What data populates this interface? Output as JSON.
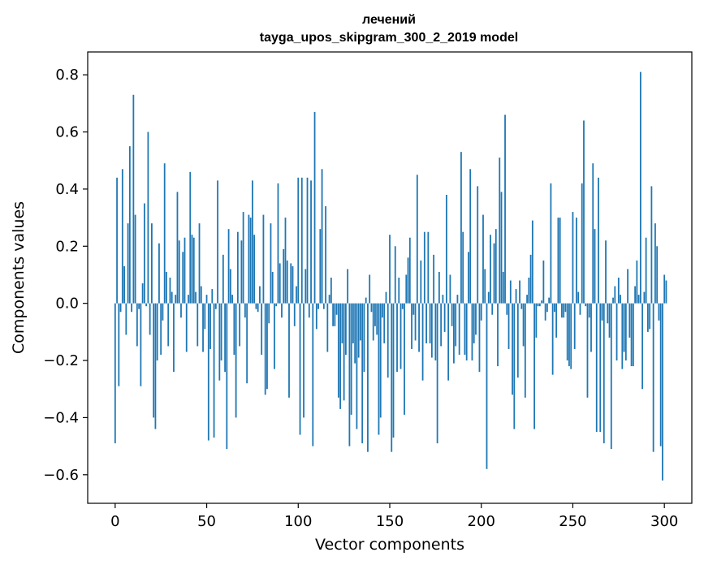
{
  "chart_data": {
    "type": "bar",
    "title": "лечений",
    "subtitle": "tayga_upos_skipgram_300_2_2019 model",
    "xlabel": "Vector components",
    "ylabel": "Components values",
    "xlim": [
      -15,
      315
    ],
    "ylim": [
      -0.7,
      0.88
    ],
    "xticks": [
      0,
      50,
      100,
      150,
      200,
      250,
      300
    ],
    "yticks": [
      -0.6,
      -0.4,
      -0.2,
      0.0,
      0.2,
      0.4,
      0.6,
      0.8
    ],
    "ytick_labels": [
      "−0.6",
      "−0.4",
      "−0.2",
      "0.0",
      "0.2",
      "0.4",
      "0.6",
      "0.8"
    ],
    "bar_color": "#1f77b4",
    "grid": false,
    "values": [
      -0.49,
      0.44,
      -0.29,
      -0.03,
      0.47,
      0.13,
      -0.11,
      0.28,
      0.55,
      -0.03,
      0.73,
      0.31,
      -0.15,
      -0.02,
      -0.29,
      0.07,
      0.35,
      -0.01,
      0.6,
      -0.11,
      0.28,
      -0.4,
      -0.44,
      -0.2,
      0.21,
      -0.18,
      -0.06,
      0.49,
      0.11,
      -0.15,
      0.09,
      0.04,
      -0.24,
      0.03,
      0.39,
      0.22,
      -0.05,
      0.18,
      0.23,
      -0.17,
      0.03,
      0.46,
      0.24,
      0.23,
      0.04,
      -0.15,
      0.28,
      0.06,
      -0.17,
      -0.09,
      0.03,
      -0.48,
      -0.16,
      0.05,
      -0.47,
      -0.02,
      0.43,
      -0.27,
      -0.2,
      0.17,
      -0.24,
      -0.51,
      0.26,
      0.12,
      0.03,
      -0.18,
      -0.4,
      0.25,
      -0.15,
      0.22,
      0.32,
      -0.05,
      -0.28,
      0.31,
      0.3,
      0.43,
      0.24,
      -0.02,
      -0.03,
      0.06,
      -0.18,
      0.31,
      -0.32,
      -0.3,
      -0.07,
      0.28,
      0.11,
      -0.23,
      -0.01,
      0.42,
      0.14,
      -0.05,
      0.19,
      0.3,
      0.15,
      -0.33,
      0.14,
      0.13,
      -0.08,
      0.06,
      0.44,
      -0.46,
      0.44,
      -0.4,
      0.12,
      0.44,
      -0.05,
      0.43,
      -0.5,
      0.67,
      -0.09,
      -0.02,
      0.26,
      0.47,
      -0.02,
      0.34,
      -0.17,
      0.03,
      0.09,
      -0.08,
      -0.08,
      -0.04,
      -0.33,
      -0.37,
      -0.14,
      -0.34,
      -0.18,
      0.12,
      -0.5,
      -0.39,
      -0.14,
      -0.21,
      -0.44,
      -0.19,
      -0.13,
      -0.49,
      -0.24,
      0.02,
      -0.52,
      0.1,
      -0.03,
      -0.13,
      -0.08,
      -0.11,
      -0.46,
      -0.4,
      -0.05,
      -0.14,
      0.04,
      -0.26,
      0.24,
      -0.52,
      -0.47,
      0.2,
      -0.24,
      0.09,
      -0.23,
      -0.02,
      -0.39,
      0.1,
      0.16,
      0.23,
      -0.16,
      -0.04,
      -0.13,
      0.45,
      -0.17,
      0.15,
      -0.27,
      0.25,
      -0.14,
      0.25,
      -0.14,
      -0.19,
      0.17,
      -0.2,
      -0.49,
      0.11,
      -0.15,
      0.03,
      -0.1,
      0.38,
      -0.27,
      0.1,
      -0.08,
      -0.21,
      -0.15,
      0.03,
      -0.18,
      0.53,
      0.25,
      -0.18,
      -0.2,
      0.18,
      0.47,
      -0.2,
      -0.14,
      -0.11,
      0.41,
      -0.24,
      -0.06,
      0.31,
      0.12,
      -0.58,
      0.04,
      0.24,
      -0.04,
      0.21,
      0.26,
      -0.22,
      0.51,
      0.39,
      0.11,
      0.66,
      -0.04,
      -0.16,
      0.08,
      -0.32,
      -0.44,
      0.05,
      -0.26,
      0.08,
      -0.02,
      -0.15,
      -0.33,
      0.03,
      0.09,
      0.17,
      0.29,
      -0.44,
      -0.12,
      -0.01,
      -0.01,
      0.01,
      0.15,
      -0.06,
      -0.03,
      0.02,
      0.42,
      -0.25,
      -0.03,
      -0.12,
      0.3,
      0.3,
      -0.05,
      -0.05,
      -0.03,
      -0.2,
      -0.22,
      -0.23,
      0.32,
      -0.16,
      0.3,
      0.04,
      -0.04,
      0.42,
      0.64,
      -0.01,
      -0.33,
      -0.05,
      -0.17,
      0.49,
      0.26,
      -0.45,
      0.44,
      -0.45,
      -0.06,
      -0.49,
      0.22,
      -0.07,
      -0.12,
      -0.51,
      0.02,
      0.06,
      -0.2,
      0.09,
      0.03,
      -0.23,
      -0.17,
      -0.2,
      0.12,
      -0.12,
      -0.22,
      -0.22,
      0.06,
      0.15,
      0.03,
      0.81,
      -0.3,
      0.04,
      0.23,
      -0.1,
      -0.09,
      0.41,
      -0.52,
      0.28,
      0.2,
      -0.06,
      -0.5,
      -0.62,
      0.1,
      0.08
    ]
  }
}
